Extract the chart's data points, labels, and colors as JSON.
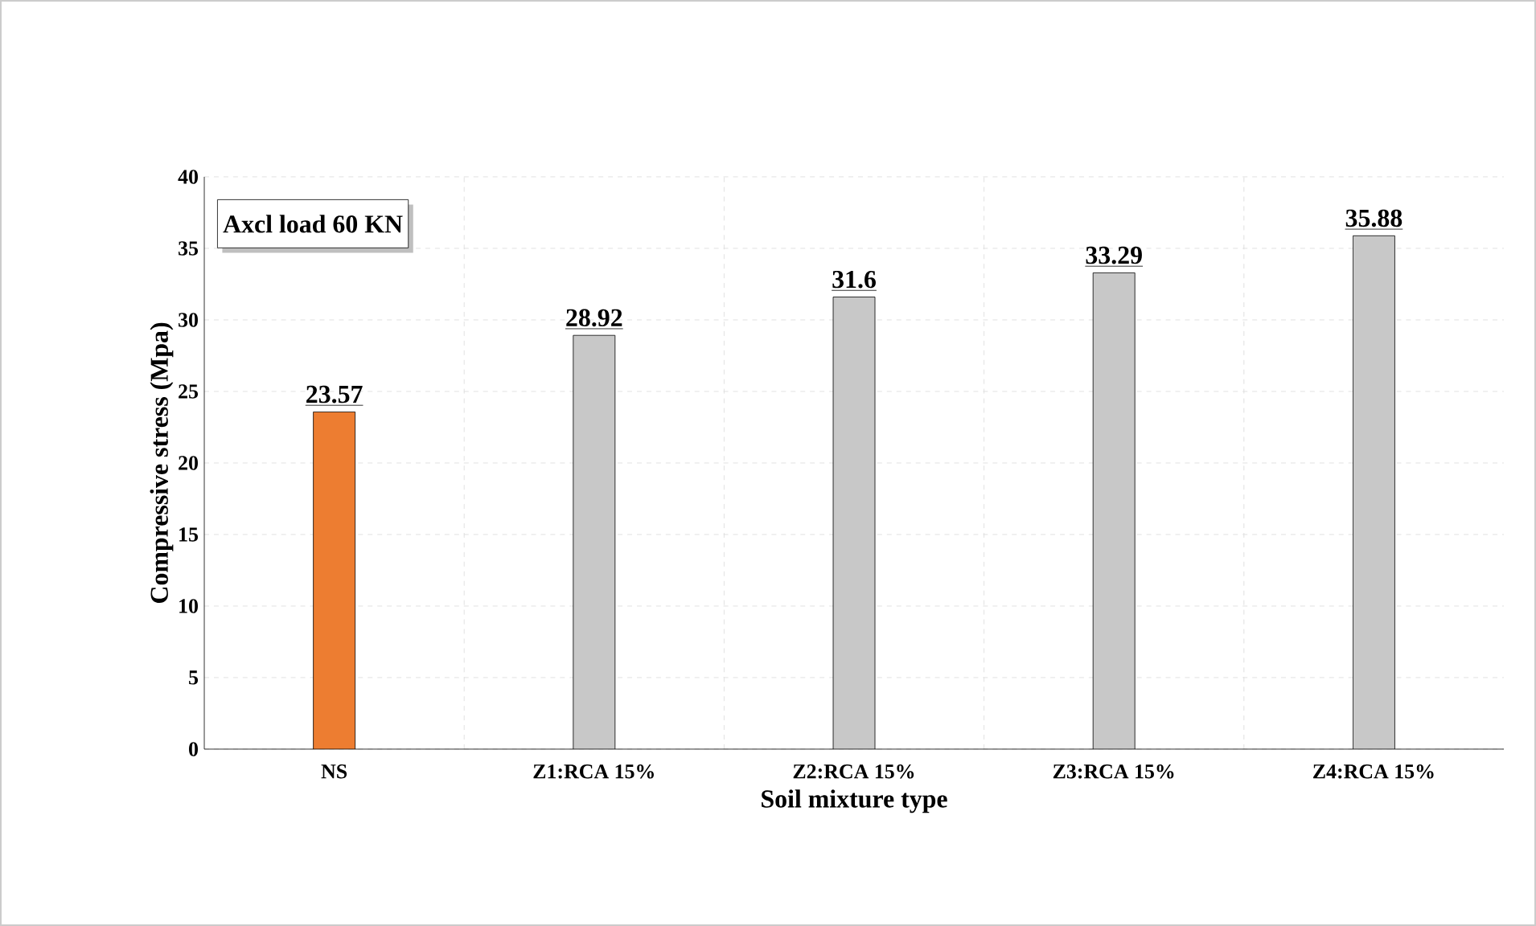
{
  "chart_data": {
    "type": "bar",
    "xlabel": "Soil mixture type",
    "ylabel": "Compressive stress (Mpa)",
    "categories": [
      "NS",
      "Z1:RCA 15%",
      "Z2:RCA 15%",
      "Z3:RCA 15%",
      "Z4:RCA 15%"
    ],
    "values": [
      23.57,
      28.92,
      31.6,
      33.29,
      35.88
    ],
    "colors": [
      "#ed7d31",
      "#c8c8c8",
      "#c8c8c8",
      "#c8c8c8",
      "#c8c8c8"
    ],
    "ylim": [
      0,
      40
    ],
    "yticks": [
      0,
      5,
      10,
      15,
      20,
      25,
      30,
      35,
      40
    ],
    "grid": true,
    "data_labels": true,
    "annotations": [
      "Axcl load 60 KN"
    ]
  }
}
